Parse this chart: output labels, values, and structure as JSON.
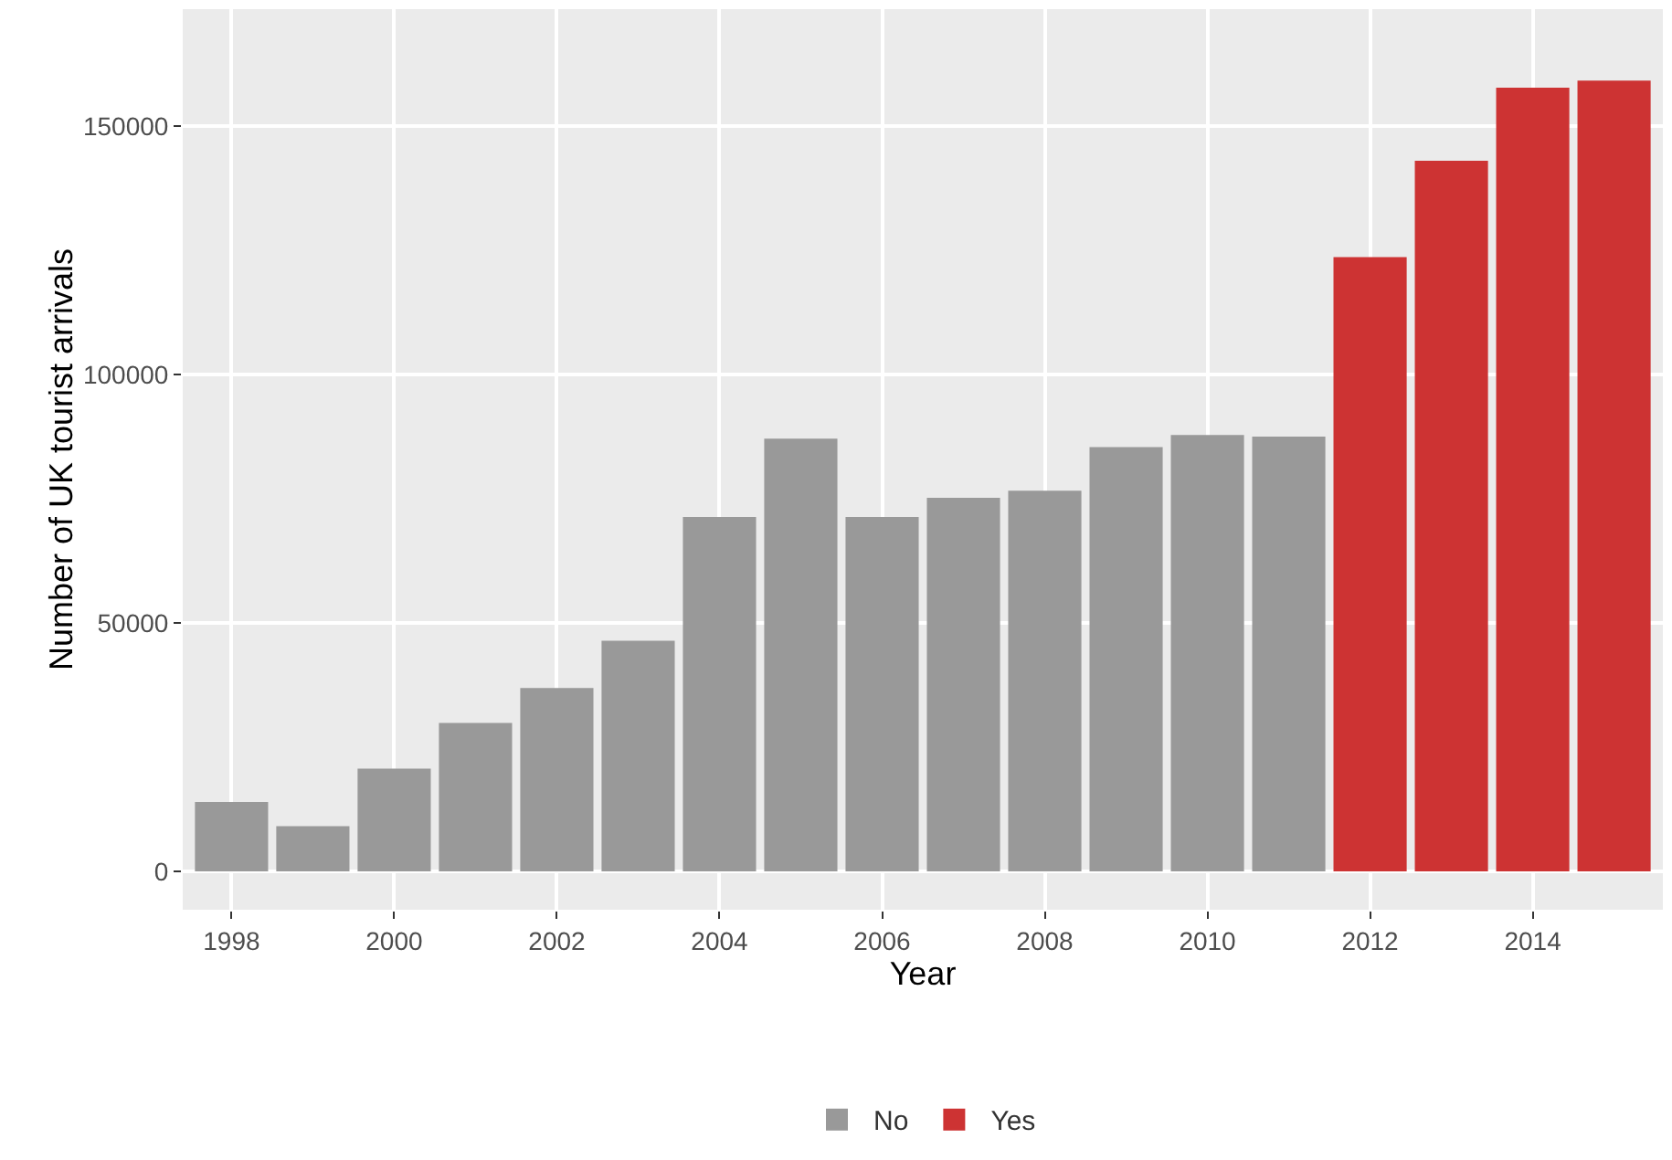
{
  "chart_data": {
    "type": "bar",
    "xlabel": "Year",
    "ylabel": "Number of UK tourist arrivals",
    "series": [
      {
        "name": "No",
        "color": "#999999",
        "x": [
          1998,
          1999,
          2000,
          2001,
          2002,
          2003,
          2004,
          2005,
          2006,
          2007,
          2008,
          2009,
          2010,
          2011
        ],
        "values": [
          14000,
          9100,
          20700,
          29900,
          36900,
          46400,
          71300,
          87100,
          71300,
          75200,
          76600,
          85400,
          87800,
          87500
        ]
      },
      {
        "name": "Yes",
        "color": "#cd3333",
        "x": [
          2012,
          2013,
          2014,
          2015
        ],
        "values": [
          123600,
          143000,
          157700,
          159100
        ]
      }
    ],
    "xlim": [
      1997.4,
      2015.6
    ],
    "xticks": [
      1998,
      2000,
      2002,
      2004,
      2006,
      2008,
      2010,
      2012,
      2014
    ],
    "ylim": [
      -7700,
      173500
    ],
    "yticks": [
      0,
      50000,
      100000,
      150000
    ],
    "grid": true,
    "legend": "bottom"
  }
}
